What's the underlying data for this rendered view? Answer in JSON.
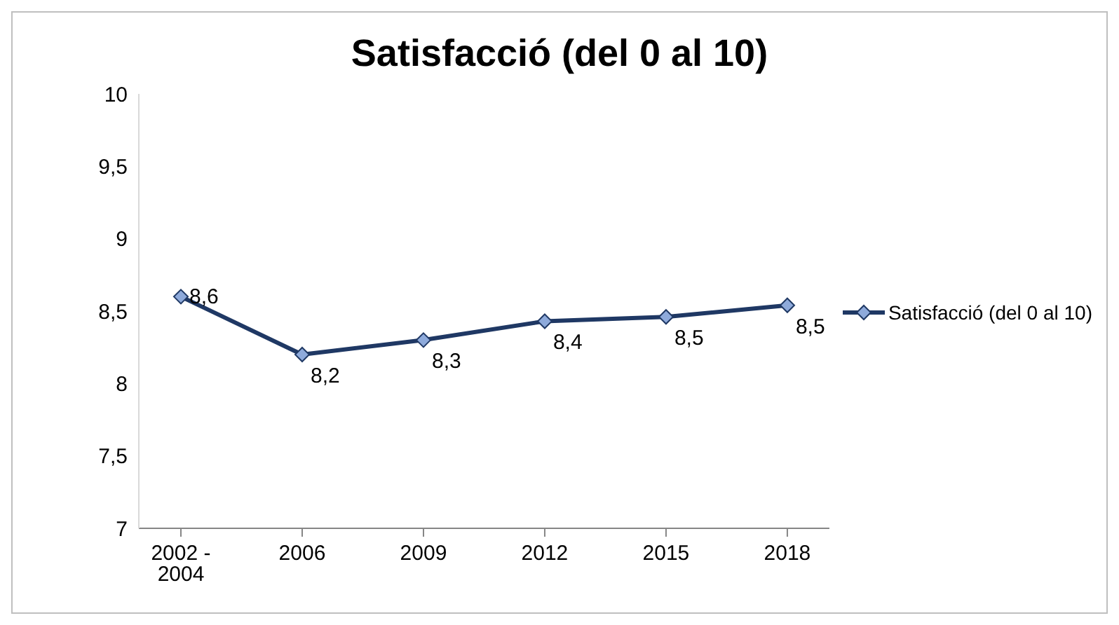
{
  "chart_data": {
    "type": "line",
    "title": "Satisfacció (del 0 al 10)",
    "categories": [
      "2002 - 2004",
      "2006",
      "2009",
      "2012",
      "2015",
      "2018"
    ],
    "series": [
      {
        "name": "Satisfacció (del 0 al 10)",
        "color": "#1f3864",
        "values": [
          8.6,
          8.2,
          8.3,
          8.43,
          8.46,
          8.54
        ],
        "value_labels": [
          "8,6",
          "8,2",
          "8,3",
          "8,4",
          "8,5",
          "8,5"
        ]
      }
    ],
    "ylim": [
      7,
      10
    ],
    "yticks": [
      {
        "value": 7,
        "label": "7"
      },
      {
        "value": 7.5,
        "label": "7,5"
      },
      {
        "value": 8,
        "label": "8"
      },
      {
        "value": 8.5,
        "label": "8,5"
      },
      {
        "value": 9,
        "label": "9"
      },
      {
        "value": 9.5,
        "label": "9,5"
      },
      {
        "value": 10,
        "label": "10"
      }
    ],
    "grid": false,
    "legend": "right",
    "marker": "diamond",
    "line_style": "solid"
  }
}
